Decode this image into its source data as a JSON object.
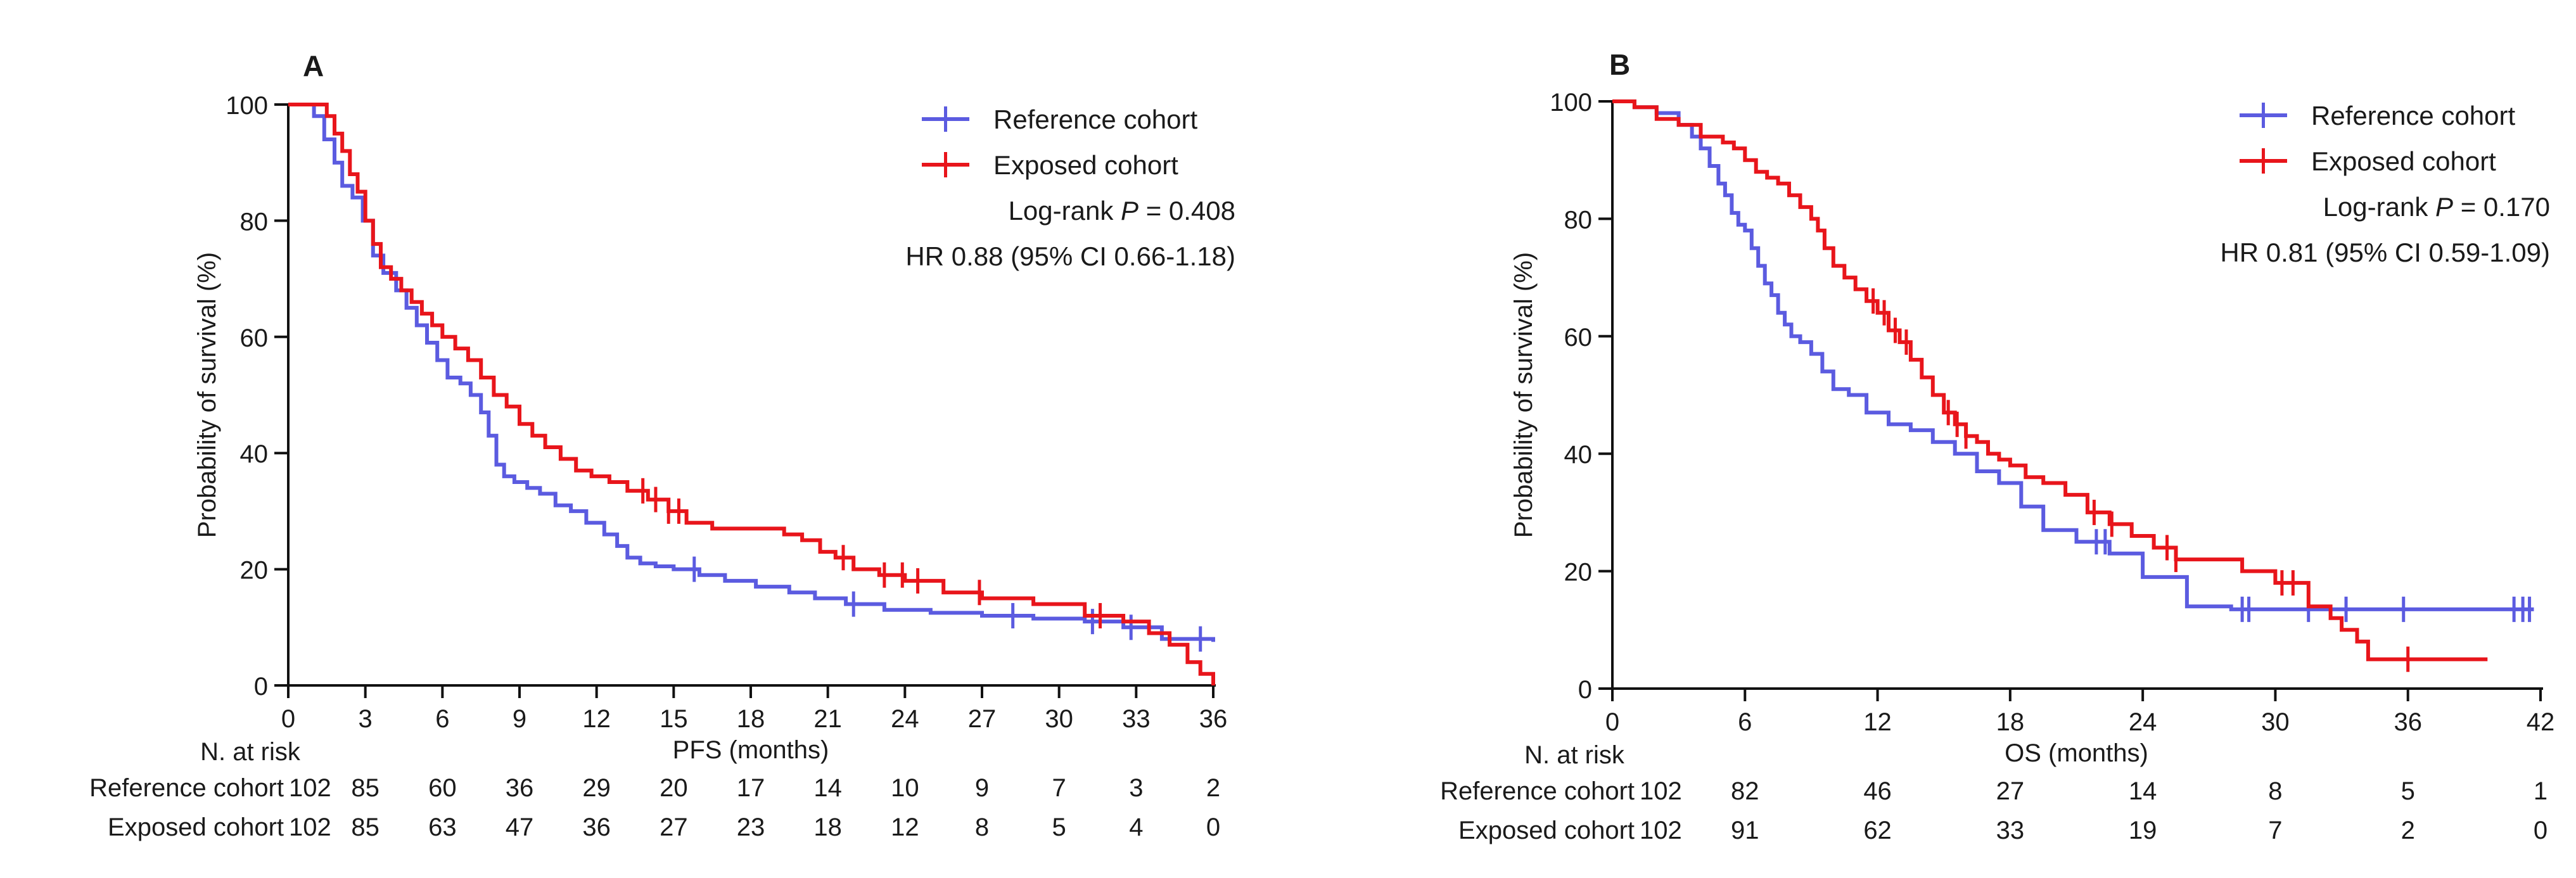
{
  "chart_data": [
    {
      "panel": "A",
      "type": "line",
      "step": true,
      "xlabel": "PFS (months)",
      "ylabel": "Probability of survival (%)",
      "xlim": [
        0,
        36
      ],
      "ylim": [
        0,
        100
      ],
      "xticks": [
        0,
        3,
        6,
        9,
        12,
        15,
        18,
        21,
        24,
        27,
        30,
        33,
        36
      ],
      "yticks": [
        0,
        20,
        40,
        60,
        80,
        100
      ],
      "grid": false,
      "legend": "top-right",
      "annotations": {
        "logrank_prefix": "Log-rank ",
        "logrank_p": "P",
        "logrank_suffix": " = 0.408",
        "hr": "HR 0.88 (95% CI 0.66-1.18)"
      },
      "series": [
        {
          "name": "Reference cohort",
          "color": "#5b5be0",
          "x": [
            0,
            1.0,
            1.4,
            1.8,
            2.1,
            2.5,
            2.9,
            3.3,
            3.7,
            4.2,
            4.6,
            5.0,
            5.4,
            5.8,
            6.2,
            6.7,
            7.1,
            7.5,
            7.8,
            8.1,
            8.4,
            8.8,
            9.3,
            9.8,
            10.4,
            11.0,
            11.6,
            12.3,
            12.8,
            13.2,
            13.7,
            14.3,
            15.0,
            16.0,
            17.0,
            18.2,
            19.5,
            20.5,
            21.7,
            23.2,
            25.0,
            27.0,
            29.0,
            31.0,
            32.5,
            34.0,
            36.0
          ],
          "y": [
            100,
            98,
            94,
            90,
            86,
            84,
            80,
            74,
            71,
            68,
            65,
            62,
            59,
            56,
            53,
            52,
            50,
            47,
            43,
            38,
            36,
            35,
            34,
            33,
            31,
            30,
            28,
            26,
            24,
            22,
            21,
            20.5,
            20,
            19,
            18,
            17,
            16,
            15,
            14,
            13,
            12.5,
            12,
            11.5,
            11,
            10,
            8,
            7.5
          ],
          "censor_x": [
            15.8,
            22.0,
            28.2,
            31.3,
            32.8,
            35.5
          ]
        },
        {
          "name": "Exposed cohort",
          "color": "#e8151b",
          "x": [
            0,
            1.5,
            1.8,
            2.1,
            2.4,
            2.7,
            3.0,
            3.3,
            3.6,
            4.0,
            4.4,
            4.8,
            5.2,
            5.6,
            6.0,
            6.5,
            7.0,
            7.5,
            8.0,
            8.5,
            9.0,
            9.5,
            10.0,
            10.6,
            11.2,
            11.8,
            12.5,
            13.2,
            14.0,
            14.8,
            15.5,
            16.5,
            17.5,
            18.5,
            19.3,
            20.0,
            20.7,
            21.3,
            22.0,
            23.0,
            24.0,
            25.5,
            27.0,
            29.0,
            31.0,
            32.5,
            33.5,
            34.3,
            35.0,
            35.5,
            36.0
          ],
          "y": [
            100,
            98,
            95,
            92,
            88,
            85,
            80,
            76,
            72,
            70,
            68,
            66,
            64,
            62,
            60,
            58,
            56,
            53,
            50,
            48,
            45,
            43,
            41,
            39,
            37,
            36,
            35,
            33.5,
            32,
            30,
            28,
            27,
            27,
            27,
            26,
            25,
            23,
            22,
            20,
            19,
            18,
            16,
            15,
            14,
            12,
            11,
            9,
            7,
            4,
            2,
            0
          ],
          "censor_x": [
            13.8,
            14.3,
            14.8,
            15.2,
            21.6,
            23.2,
            23.9,
            24.5,
            26.9,
            31.6
          ]
        }
      ],
      "risk_table": {
        "title": "N. at risk",
        "rows": [
          {
            "label": "Reference cohort",
            "values": [
              "102",
              "85",
              "60",
              "36",
              "29",
              "20",
              "17",
              "14",
              "10",
              "9",
              "7",
              "3",
              "2"
            ]
          },
          {
            "label": "Exposed cohort",
            "values": [
              "102",
              "85",
              "63",
              "47",
              "36",
              "27",
              "23",
              "18",
              "12",
              "8",
              "5",
              "4",
              "0"
            ]
          }
        ]
      }
    },
    {
      "panel": "B",
      "type": "line",
      "step": true,
      "xlabel": "OS (months)",
      "ylabel": "Probability of survival (%)",
      "xlim": [
        0,
        42
      ],
      "ylim": [
        0,
        100
      ],
      "xticks": [
        0,
        6,
        12,
        18,
        24,
        30,
        36,
        42
      ],
      "yticks": [
        0,
        20,
        40,
        60,
        80,
        100
      ],
      "grid": false,
      "legend": "top-right",
      "annotations": {
        "logrank_prefix": "Log-rank ",
        "logrank_p": "P",
        "logrank_suffix": " = 0.170",
        "hr": "HR 0.81 (95% CI 0.59-1.09)"
      },
      "series": [
        {
          "name": "Reference cohort",
          "color": "#5b5be0",
          "x": [
            0,
            1.0,
            2.0,
            3.0,
            3.6,
            4.0,
            4.4,
            4.8,
            5.1,
            5.4,
            5.7,
            6.0,
            6.3,
            6.6,
            6.9,
            7.2,
            7.5,
            7.8,
            8.1,
            8.5,
            9.0,
            9.5,
            10.0,
            10.7,
            11.5,
            12.5,
            13.5,
            14.5,
            15.5,
            16.5,
            17.5,
            18.5,
            19.5,
            21.0,
            22.5,
            24.0,
            26.0,
            28.0,
            30.0,
            32.0,
            34.0,
            36.0,
            38.0,
            40.0,
            41.7
          ],
          "y": [
            100,
            99,
            98,
            96,
            94,
            92,
            89,
            86,
            84,
            81,
            79,
            78,
            75,
            72,
            69,
            67,
            64,
            62,
            60,
            59,
            57,
            54,
            51,
            50,
            47,
            45,
            44,
            42,
            40,
            37,
            35,
            31,
            27,
            25,
            23,
            19,
            14,
            13.5,
            13.5,
            13.5,
            13.5,
            13.5,
            13.5,
            13.5,
            13.5
          ],
          "censor_x": [
            21.9,
            22.3,
            28.5,
            28.8,
            31.5,
            33.2,
            35.8,
            40.8,
            41.2,
            41.5
          ]
        },
        {
          "name": "Exposed cohort",
          "color": "#e8151b",
          "x": [
            0,
            1.0,
            2.0,
            3.0,
            4.0,
            5.0,
            5.5,
            6.0,
            6.5,
            7.0,
            7.5,
            8.0,
            8.5,
            9.0,
            9.3,
            9.6,
            10.0,
            10.5,
            11.0,
            11.5,
            12.0,
            12.5,
            13.0,
            13.5,
            14.0,
            14.5,
            15.0,
            15.5,
            16.0,
            16.5,
            17.0,
            17.5,
            18.0,
            18.7,
            19.5,
            20.5,
            21.5,
            22.5,
            23.5,
            24.5,
            25.5,
            26.5,
            27.5,
            28.5,
            30.0,
            31.5,
            32.5,
            33.0,
            33.7,
            34.2,
            36.0,
            38.0,
            39.6
          ],
          "y": [
            100,
            99,
            97,
            96,
            94,
            93,
            92,
            90,
            88,
            87,
            86,
            84,
            82,
            80,
            78,
            75,
            72,
            70,
            68,
            66,
            64,
            61,
            59,
            56,
            53,
            50,
            47,
            45,
            43,
            42,
            40,
            39,
            38,
            36,
            35,
            33,
            30,
            28,
            26,
            24,
            22,
            22,
            22,
            20,
            18,
            14,
            12,
            10,
            8,
            5,
            5,
            5,
            5
          ],
          "censor_x": [
            11.8,
            12.3,
            12.8,
            13.3,
            15.2,
            15.6,
            16.0,
            21.8,
            22.6,
            25.1,
            25.5,
            30.3,
            30.8,
            36.0
          ]
        }
      ],
      "risk_table": {
        "title": "N. at risk",
        "rows": [
          {
            "label": "Reference cohort",
            "values": [
              "102",
              "82",
              "46",
              "27",
              "14",
              "8",
              "5",
              "1"
            ]
          },
          {
            "label": "Exposed cohort",
            "values": [
              "102",
              "91",
              "62",
              "33",
              "19",
              "7",
              "2",
              "0"
            ]
          }
        ]
      }
    }
  ]
}
